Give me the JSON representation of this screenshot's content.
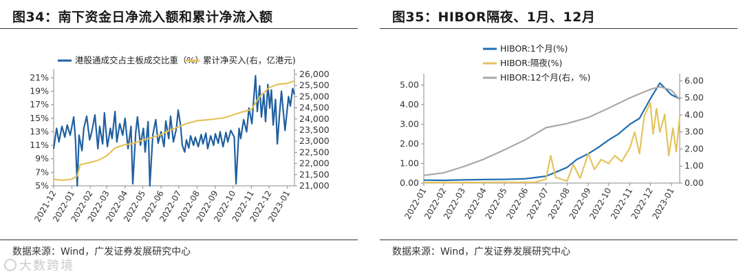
{
  "panels": [
    {
      "title": "图34：南下资金日净流入额和累计净流入额",
      "source": "数据来源：Wind，广发证券发展研究中心"
    },
    {
      "title": "图35：HIBOR隔夜、1月、12月",
      "source": "数据来源：Wind，广发证券发展研究中心"
    }
  ],
  "watermark": "大数跨境",
  "chart_data": [
    {
      "type": "line",
      "x_ticks": [
        "2021-12",
        "2022-01",
        "2022-02",
        "2022-03",
        "2022-04",
        "2022-05",
        "2022-06",
        "2022-07",
        "2022-08",
        "2022-09",
        "2022-10",
        "2022-11",
        "2022-12",
        "2023-01"
      ],
      "x_start": "2021-12-01",
      "x_end": "2023-01-13",
      "y_left": {
        "ticks": [
          "5%",
          "7%",
          "9%",
          "11%",
          "13%",
          "15%",
          "17%",
          "19%",
          "21%"
        ],
        "range": [
          5,
          21.5
        ]
      },
      "y_right": {
        "ticks": [
          "21,000",
          "21,500",
          "22,000",
          "22,500",
          "23,000",
          "23,500",
          "24,000",
          "24,500",
          "25,000",
          "25,500",
          "26,000"
        ],
        "range": [
          21000,
          26000
        ]
      },
      "legend": "top",
      "series": [
        {
          "name": "港股通成交占主板成交比重（%）",
          "axis": "left",
          "color": "#1f5fa0",
          "points": [
            [
              "2021-12-01",
              10.5
            ],
            [
              "2021-12-06",
              13.5
            ],
            [
              "2021-12-10",
              11.5
            ],
            [
              "2021-12-15",
              13.8
            ],
            [
              "2021-12-20",
              12.2
            ],
            [
              "2021-12-24",
              14.0
            ],
            [
              "2021-12-29",
              12.5
            ],
            [
              "2022-01-04",
              15.2
            ],
            [
              "2022-01-07",
              11.8
            ],
            [
              "2022-01-10",
              5.0
            ],
            [
              "2022-01-13",
              12.5
            ],
            [
              "2022-01-18",
              10.2
            ],
            [
              "2022-01-21",
              13.5
            ],
            [
              "2022-01-26",
              15.3
            ],
            [
              "2022-01-31",
              11.8
            ],
            [
              "2022-02-04",
              13.2
            ],
            [
              "2022-02-09",
              15.5
            ],
            [
              "2022-02-14",
              10.5
            ],
            [
              "2022-02-17",
              13.8
            ],
            [
              "2022-02-22",
              11.2
            ],
            [
              "2022-02-25",
              15.8
            ],
            [
              "2022-03-02",
              10.8
            ],
            [
              "2022-03-07",
              13.5
            ],
            [
              "2022-03-10",
              12.0
            ],
            [
              "2022-03-15",
              16.0
            ],
            [
              "2022-03-18",
              11.5
            ],
            [
              "2022-03-23",
              14.2
            ],
            [
              "2022-03-28",
              12.5
            ],
            [
              "2022-04-01",
              15.0
            ],
            [
              "2022-04-06",
              10.5
            ],
            [
              "2022-04-11",
              13.8
            ],
            [
              "2022-04-14",
              5.3
            ],
            [
              "2022-04-19",
              12.8
            ],
            [
              "2022-04-22",
              15.2
            ],
            [
              "2022-04-27",
              11.0
            ],
            [
              "2022-05-02",
              13.5
            ],
            [
              "2022-05-05",
              10.0
            ],
            [
              "2022-05-10",
              14.5
            ],
            [
              "2022-05-13",
              5.0
            ],
            [
              "2022-05-18",
              12.5
            ],
            [
              "2022-05-23",
              14.8
            ],
            [
              "2022-05-27",
              11.3
            ],
            [
              "2022-06-01",
              13.0
            ],
            [
              "2022-06-06",
              10.8
            ],
            [
              "2022-06-09",
              14.6
            ],
            [
              "2022-06-14",
              12.0
            ],
            [
              "2022-06-17",
              15.3
            ],
            [
              "2022-06-22",
              11.5
            ],
            [
              "2022-06-27",
              13.5
            ],
            [
              "2022-06-30",
              16.2
            ],
            [
              "2022-07-04",
              14.0
            ],
            [
              "2022-07-07",
              11.0
            ],
            [
              "2022-07-11",
              10.0
            ],
            [
              "2022-07-14",
              11.8
            ],
            [
              "2022-07-18",
              10.6
            ],
            [
              "2022-07-21",
              12.4
            ],
            [
              "2022-07-26",
              11.0
            ],
            [
              "2022-07-29",
              12.2
            ],
            [
              "2022-08-03",
              10.8
            ],
            [
              "2022-08-08",
              12.6
            ],
            [
              "2022-08-11",
              11.2
            ],
            [
              "2022-08-16",
              12.8
            ],
            [
              "2022-08-19",
              10.5
            ],
            [
              "2022-08-24",
              12.4
            ],
            [
              "2022-08-29",
              11.0
            ],
            [
              "2022-09-01",
              12.7
            ],
            [
              "2022-09-06",
              11.3
            ],
            [
              "2022-09-09",
              13.0
            ],
            [
              "2022-09-14",
              10.8
            ],
            [
              "2022-09-19",
              12.9
            ],
            [
              "2022-09-22",
              11.5
            ],
            [
              "2022-09-27",
              13.2
            ],
            [
              "2022-10-03",
              12.2
            ],
            [
              "2022-10-06",
              5.3
            ],
            [
              "2022-10-11",
              13.5
            ],
            [
              "2022-10-14",
              12.0
            ],
            [
              "2022-10-19",
              14.8
            ],
            [
              "2022-10-24",
              13.0
            ],
            [
              "2022-10-28",
              16.5
            ],
            [
              "2022-11-02",
              14.2
            ],
            [
              "2022-11-05",
              17.8
            ],
            [
              "2022-11-08",
              21.3
            ],
            [
              "2022-11-11",
              16.0
            ],
            [
              "2022-11-15",
              19.8
            ],
            [
              "2022-11-18",
              15.2
            ],
            [
              "2022-11-22",
              18.6
            ],
            [
              "2022-11-25",
              14.5
            ],
            [
              "2022-11-29",
              20.0
            ],
            [
              "2022-12-02",
              16.5
            ],
            [
              "2022-12-05",
              19.2
            ],
            [
              "2022-12-08",
              14.0
            ],
            [
              "2022-12-12",
              17.8
            ],
            [
              "2022-12-15",
              11.2
            ],
            [
              "2022-12-19",
              16.0
            ],
            [
              "2022-12-22",
              19.0
            ],
            [
              "2022-12-28",
              13.2
            ],
            [
              "2023-01-03",
              18.2
            ],
            [
              "2023-01-06",
              16.8
            ],
            [
              "2023-01-10",
              19.4
            ],
            [
              "2023-01-13",
              18.5
            ]
          ]
        },
        {
          "name": "累计净买入(右，亿港元)",
          "axis": "right",
          "color": "#e6c25a",
          "points": [
            [
              "2021-12-01",
              21300
            ],
            [
              "2021-12-15",
              21250
            ],
            [
              "2022-01-01",
              21300
            ],
            [
              "2022-01-10",
              21450
            ],
            [
              "2022-01-15",
              21950
            ],
            [
              "2022-02-01",
              22050
            ],
            [
              "2022-02-15",
              22150
            ],
            [
              "2022-03-01",
              22350
            ],
            [
              "2022-03-15",
              22700
            ],
            [
              "2022-04-01",
              22850
            ],
            [
              "2022-04-15",
              22900
            ],
            [
              "2022-05-01",
              23050
            ],
            [
              "2022-05-15",
              23150
            ],
            [
              "2022-06-01",
              23300
            ],
            [
              "2022-06-15",
              23480
            ],
            [
              "2022-07-01",
              23650
            ],
            [
              "2022-07-15",
              23800
            ],
            [
              "2022-08-01",
              23920
            ],
            [
              "2022-08-15",
              23950
            ],
            [
              "2022-09-01",
              24000
            ],
            [
              "2022-09-15",
              24050
            ],
            [
              "2022-10-01",
              24180
            ],
            [
              "2022-10-15",
              24300
            ],
            [
              "2022-11-01",
              24420
            ],
            [
              "2022-11-15",
              25000
            ],
            [
              "2022-12-01",
              25400
            ],
            [
              "2022-12-15",
              25550
            ],
            [
              "2023-01-01",
              25600
            ],
            [
              "2023-01-13",
              25700
            ]
          ]
        }
      ]
    },
    {
      "type": "line",
      "x_ticks": [
        "2022-01",
        "2022-02",
        "2022-03",
        "2022-04",
        "2022-05",
        "2022-06",
        "2022-07",
        "2022-08",
        "2022-09",
        "2022-10",
        "2022-11",
        "2022-12",
        "2023-01"
      ],
      "x_start": "2022-01-03",
      "x_end": "2023-01-13",
      "y_left": {
        "ticks": [
          "0.00",
          "1.00",
          "2.00",
          "3.00",
          "4.00",
          "5.00"
        ],
        "range": [
          0,
          5.3
        ]
      },
      "y_right": {
        "ticks": [
          "0.00",
          "1.00",
          "2.00",
          "3.00",
          "4.00",
          "5.00",
          "6.00"
        ],
        "range": [
          0,
          6.1
        ]
      },
      "legend": "top",
      "series": [
        {
          "name": "HIBOR:1个月(%)",
          "axis": "left",
          "color": "#1f6eb0",
          "points": [
            [
              "2022-01-03",
              0.15
            ],
            [
              "2022-02-01",
              0.14
            ],
            [
              "2022-03-01",
              0.16
            ],
            [
              "2022-04-01",
              0.18
            ],
            [
              "2022-05-01",
              0.19
            ],
            [
              "2022-06-01",
              0.22
            ],
            [
              "2022-06-15",
              0.28
            ],
            [
              "2022-07-01",
              0.35
            ],
            [
              "2022-07-15",
              0.55
            ],
            [
              "2022-08-01",
              0.8
            ],
            [
              "2022-08-15",
              1.2
            ],
            [
              "2022-09-01",
              1.5
            ],
            [
              "2022-09-15",
              1.8
            ],
            [
              "2022-10-01",
              2.2
            ],
            [
              "2022-10-15",
              2.5
            ],
            [
              "2022-11-01",
              3.0
            ],
            [
              "2022-11-15",
              3.3
            ],
            [
              "2022-12-01",
              4.3
            ],
            [
              "2022-12-15",
              5.1
            ],
            [
              "2023-01-01",
              4.5
            ],
            [
              "2023-01-13",
              4.3
            ]
          ]
        },
        {
          "name": "HIBOR:隔夜(%)",
          "axis": "left",
          "color": "#e5c35c",
          "points": [
            [
              "2022-01-03",
              0.03
            ],
            [
              "2022-03-01",
              0.03
            ],
            [
              "2022-05-01",
              0.04
            ],
            [
              "2022-06-15",
              0.04
            ],
            [
              "2022-07-01",
              0.2
            ],
            [
              "2022-07-08",
              1.4
            ],
            [
              "2022-07-15",
              0.3
            ],
            [
              "2022-08-01",
              0.1
            ],
            [
              "2022-08-10",
              0.95
            ],
            [
              "2022-08-20",
              0.25
            ],
            [
              "2022-09-01",
              1.5
            ],
            [
              "2022-09-10",
              0.7
            ],
            [
              "2022-09-20",
              1.2
            ],
            [
              "2022-10-01",
              1.0
            ],
            [
              "2022-10-10",
              1.4
            ],
            [
              "2022-10-20",
              1.1
            ],
            [
              "2022-11-01",
              1.8
            ],
            [
              "2022-11-08",
              2.6
            ],
            [
              "2022-11-15",
              1.5
            ],
            [
              "2022-11-22",
              3.4
            ],
            [
              "2022-12-01",
              4.1
            ],
            [
              "2022-12-05",
              2.5
            ],
            [
              "2022-12-10",
              3.8
            ],
            [
              "2022-12-15",
              2.6
            ],
            [
              "2022-12-22",
              3.5
            ],
            [
              "2022-12-28",
              1.4
            ],
            [
              "2023-01-03",
              2.8
            ],
            [
              "2023-01-08",
              1.6
            ],
            [
              "2023-01-13",
              3.4
            ]
          ]
        },
        {
          "name": "HIBOR:12个月(右，%)",
          "axis": "right",
          "color": "#a8a8a8",
          "points": [
            [
              "2022-01-03",
              0.45
            ],
            [
              "2022-02-01",
              0.6
            ],
            [
              "2022-03-01",
              0.95
            ],
            [
              "2022-04-01",
              1.4
            ],
            [
              "2022-05-01",
              1.95
            ],
            [
              "2022-06-01",
              2.55
            ],
            [
              "2022-07-01",
              3.25
            ],
            [
              "2022-08-01",
              3.5
            ],
            [
              "2022-09-01",
              3.85
            ],
            [
              "2022-10-01",
              4.4
            ],
            [
              "2022-11-01",
              5.0
            ],
            [
              "2022-12-01",
              5.5
            ],
            [
              "2022-12-15",
              5.65
            ],
            [
              "2023-01-01",
              5.45
            ],
            [
              "2023-01-13",
              4.9
            ]
          ]
        }
      ]
    }
  ]
}
